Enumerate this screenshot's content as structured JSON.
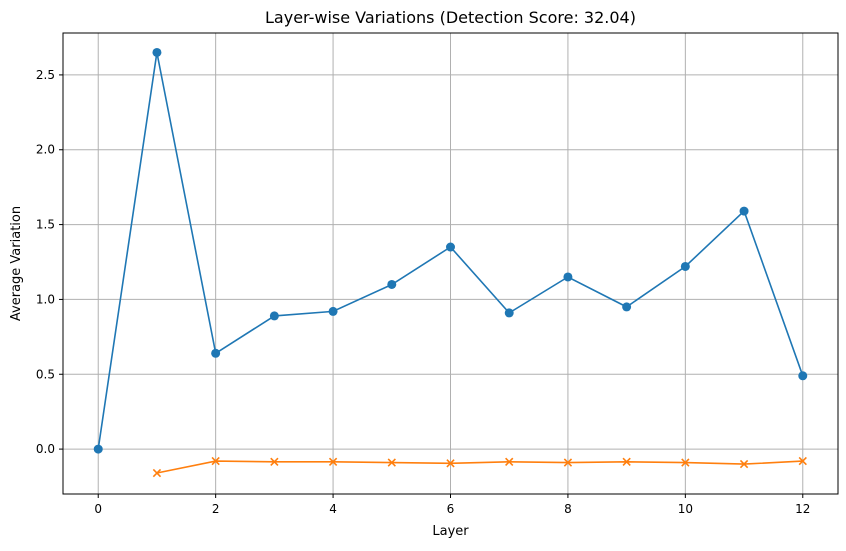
{
  "chart_data": {
    "type": "line",
    "title": "Layer-wise Variations (Detection Score: 32.04)",
    "xlabel": "Layer",
    "ylabel": "Average Variation",
    "xlim": [
      -0.6,
      12.6
    ],
    "ylim": [
      -0.3,
      2.78
    ],
    "x_ticks": [
      0,
      2,
      4,
      6,
      8,
      10,
      12
    ],
    "y_ticks": [
      0.0,
      0.5,
      1.0,
      1.5,
      2.0,
      2.5
    ],
    "x_tick_labels": [
      "0",
      "2",
      "4",
      "6",
      "8",
      "10",
      "12"
    ],
    "y_tick_labels": [
      "0.0",
      "0.5",
      "1.0",
      "1.5",
      "2.0",
      "2.5"
    ],
    "grid": true,
    "series": [
      {
        "color": "#1f77b4",
        "marker": "circle",
        "x": [
          0,
          1,
          2,
          3,
          4,
          5,
          6,
          7,
          8,
          9,
          10,
          11,
          12
        ],
        "y": [
          0.0,
          2.65,
          0.64,
          0.89,
          0.92,
          1.1,
          1.35,
          0.91,
          1.15,
          0.95,
          1.22,
          1.59,
          0.49
        ]
      },
      {
        "color": "#ff7f0e",
        "marker": "x",
        "x": [
          1,
          2,
          3,
          4,
          5,
          6,
          7,
          8,
          9,
          10,
          11,
          12
        ],
        "y": [
          -0.16,
          -0.08,
          -0.085,
          -0.085,
          -0.09,
          -0.095,
          -0.085,
          -0.09,
          -0.085,
          -0.09,
          -0.1,
          -0.08
        ]
      }
    ]
  }
}
